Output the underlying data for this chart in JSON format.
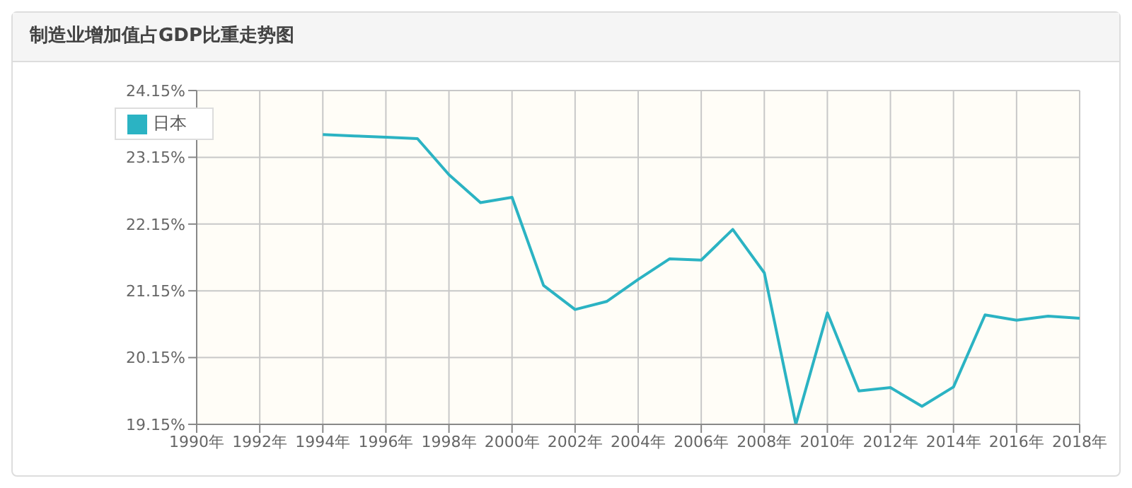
{
  "chart_data": {
    "type": "line",
    "title": "制造业增加值占GDP比重走势图",
    "x": [
      1994,
      1995,
      1996,
      1997,
      1998,
      1999,
      2000,
      2001,
      2002,
      2003,
      2004,
      2005,
      2006,
      2007,
      2008,
      2009,
      2010,
      2011,
      2012,
      2013,
      2014,
      2015,
      2016,
      2017,
      2018
    ],
    "series": [
      {
        "name": "日本",
        "color": "#2bb3c3",
        "values": [
          23.49,
          23.47,
          23.45,
          23.43,
          22.89,
          22.47,
          22.55,
          21.23,
          20.87,
          20.99,
          21.32,
          21.63,
          21.61,
          22.07,
          21.42,
          19.15,
          20.82,
          19.65,
          19.7,
          19.42,
          19.71,
          20.79,
          20.71,
          20.77,
          20.74
        ]
      }
    ],
    "xlim": [
      1990,
      2018
    ],
    "xticks": [
      {
        "value": 1990,
        "label": "1990年"
      },
      {
        "value": 1992,
        "label": "1992年"
      },
      {
        "value": 1994,
        "label": "1994年"
      },
      {
        "value": 1996,
        "label": "1996年"
      },
      {
        "value": 1998,
        "label": "1998年"
      },
      {
        "value": 2000,
        "label": "2000年"
      },
      {
        "value": 2002,
        "label": "2002年"
      },
      {
        "value": 2004,
        "label": "2004年"
      },
      {
        "value": 2006,
        "label": "2006年"
      },
      {
        "value": 2008,
        "label": "2008年"
      },
      {
        "value": 2010,
        "label": "2010年"
      },
      {
        "value": 2012,
        "label": "2012年"
      },
      {
        "value": 2014,
        "label": "2014年"
      },
      {
        "value": 2016,
        "label": "2016年"
      },
      {
        "value": 2018,
        "label": "2018年"
      }
    ],
    "ylim": [
      19.15,
      24.15
    ],
    "yticks": [
      {
        "value": 19.15,
        "label": "19.15%"
      },
      {
        "value": 20.15,
        "label": "20.15%"
      },
      {
        "value": 21.15,
        "label": "21.15%"
      },
      {
        "value": 22.15,
        "label": "22.15%"
      },
      {
        "value": 23.15,
        "label": "23.15%"
      },
      {
        "value": 24.15,
        "label": "24.15%"
      }
    ],
    "grid": true,
    "legend": "top left",
    "marker": "none",
    "line_style": "solid"
  }
}
